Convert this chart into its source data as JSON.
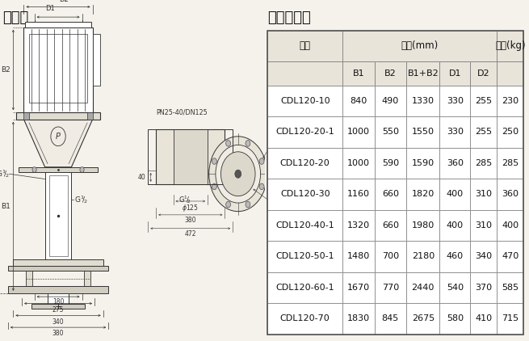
{
  "title_left": "安装图",
  "title_right": "尺寸和重量",
  "table_header_row1_cols": [
    "型号",
    "尺寸(mm)",
    "重量(kg)"
  ],
  "table_header_row2_cols": [
    "",
    "B1",
    "B2",
    "B1+B2",
    "D1",
    "D2",
    ""
  ],
  "table_data": [
    [
      "CDL120-10",
      840,
      490,
      1330,
      330,
      255,
      230
    ],
    [
      "CDL120-20-1",
      1000,
      550,
      1550,
      330,
      255,
      250
    ],
    [
      "CDL120-20",
      1000,
      590,
      1590,
      360,
      285,
      285
    ],
    [
      "CDL120-30",
      1160,
      660,
      1820,
      400,
      310,
      360
    ],
    [
      "CDL120-40-1",
      1320,
      660,
      1980,
      400,
      310,
      400
    ],
    [
      "CDL120-50-1",
      1480,
      700,
      2180,
      460,
      340,
      470
    ],
    [
      "CDL120-60-1",
      1670,
      770,
      2440,
      540,
      370,
      585
    ],
    [
      "CDL120-70",
      1830,
      845,
      2675,
      580,
      410,
      715
    ]
  ],
  "bg_color": "#f5f2ec",
  "table_bg_white": "#ffffff",
  "header_bg": "#e8e4da",
  "grid_color": "#888888",
  "text_color": "#111111",
  "title_fontsize": 13,
  "header_fontsize": 8.5,
  "cell_fontsize": 8,
  "lc": "#333333",
  "motor_color": "#ffffff",
  "pump_color": "#f0ece4",
  "dim_color": "#333333"
}
